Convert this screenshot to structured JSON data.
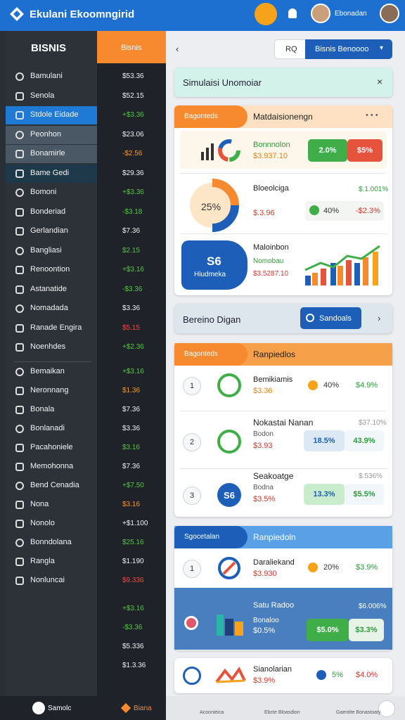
{
  "header": {
    "logo": "Ekulani Ekoomngirid",
    "user": "Ebonadan"
  },
  "sidebar": {
    "title": "BISNIS",
    "column_title": "Bisnis",
    "items": [
      {
        "label": "Bamulani",
        "value": "$53.36"
      },
      {
        "label": "Senola",
        "value": "$52.15"
      },
      {
        "label": "Stdole Eidade",
        "value": "+$3.36"
      },
      {
        "label": "Peonhon",
        "value": "$23.06"
      },
      {
        "label": "Bonamirle",
        "value": "-$2.56"
      },
      {
        "label": "Bame Gedi",
        "value": "$29.36"
      },
      {
        "label": "Bomoni",
        "value": "+$3.36"
      },
      {
        "label": "Bonderiad",
        "value": "-$3.18"
      },
      {
        "label": "Gerlandian",
        "value": "$7.36"
      },
      {
        "label": "Bangliasi",
        "value": "$2.15"
      },
      {
        "label": "Renoontion",
        "value": "+$3.16"
      },
      {
        "label": "Astanatide",
        "value": "-$3.36"
      },
      {
        "label": "Nomadada",
        "value": "$3.36"
      },
      {
        "label": "Ranade Engira",
        "value": "$5.15"
      },
      {
        "label": "Noenhdes",
        "value": "+$2.36"
      },
      {
        "label": "Bemaikan",
        "value": "+$3.16"
      },
      {
        "label": "Neronnang",
        "value": "$1.36"
      },
      {
        "label": "Bonala",
        "value": "$7.36"
      },
      {
        "label": "Bonlanadi",
        "value": "$3.36"
      },
      {
        "label": "Pacahoniele",
        "value": "$3.16"
      },
      {
        "label": "Memohonna",
        "value": "$7.36"
      },
      {
        "label": "Bend Cenadia",
        "value": "+$7.50"
      },
      {
        "label": "Nona",
        "value": "$3.16"
      },
      {
        "label": "Nonolo",
        "value": "+$1.100"
      },
      {
        "label": "Bonndolana",
        "value": "$25.16"
      },
      {
        "label": "Rangla",
        "value": "$1.190"
      },
      {
        "label": "Nonluncai",
        "value": "$9.336"
      }
    ],
    "extra_values": [
      "+$3.16",
      "-$3.36",
      "$5.336",
      "$1.3.36"
    ]
  },
  "toolbar": {
    "search": "RQ",
    "dropdown": "Bisnis Benoooo"
  },
  "banner": {
    "text": "Simulaisi Unomoiar"
  },
  "card_a": {
    "tab": "Bagonteds",
    "title": "Matdaisionengn",
    "row1": {
      "name": "Bonnnolon",
      "amount": "$3.937.10",
      "pill_green": "2.0%",
      "pill_red": "$5%"
    },
    "row2": {
      "donut": "25%",
      "name": "Bloeolciga",
      "amount": "$.3.96",
      "top": "$.1.001%",
      "change": "40%",
      "loss": "-$2.3%"
    },
    "row3": {
      "badge": "S6",
      "badge_label": "Hiudmeka",
      "name": "Maloinbon",
      "sub": "Nomobau",
      "amount": "$3.5287.10"
    }
  },
  "search_bar": {
    "text": "Bereino Digan",
    "button": "Sandoals"
  },
  "card_b": {
    "tab": "Bagonteds",
    "title": "Ranpiedlos",
    "rows": [
      {
        "index": "1",
        "name": "Bemikiamis",
        "amount": "$3.36",
        "change": "40%",
        "value": "$4.9%"
      },
      {
        "index": "2",
        "name": "Nokastai Nanan",
        "top": "$37.10%",
        "sub": "Bodon",
        "amount": "$3.93",
        "change": "18.5%",
        "value": "43.9%"
      },
      {
        "index": "3",
        "badge": "S6",
        "name": "Seakoatge",
        "top": "$.536%",
        "sub": "Bodna",
        "amount": "$3.5%",
        "change": "13.3%",
        "value": "$5.5%"
      }
    ]
  },
  "card_c": {
    "tab": "Sgocetalan",
    "title": "Ranpiedoln",
    "row1": {
      "index": "1",
      "name": "Daraliekand",
      "amount": "$3.930",
      "change": "20%",
      "value": "$3.9%"
    },
    "row2": {
      "name": "Satu Radoo",
      "top": "$6.006%",
      "sub": "Bonaloo",
      "amount": "$0.5%",
      "change": "$5.0%",
      "value": "$3.3%"
    }
  },
  "card_d": {
    "name": "Sianolarian",
    "amount": "$3.9%",
    "change": "5%",
    "value": "$4.0%"
  },
  "bottom_nav": [
    "Samolc",
    "Biana",
    "Acoonieica",
    "Ebcte Bloasdion",
    "Gaentite Bonastoaty"
  ]
}
